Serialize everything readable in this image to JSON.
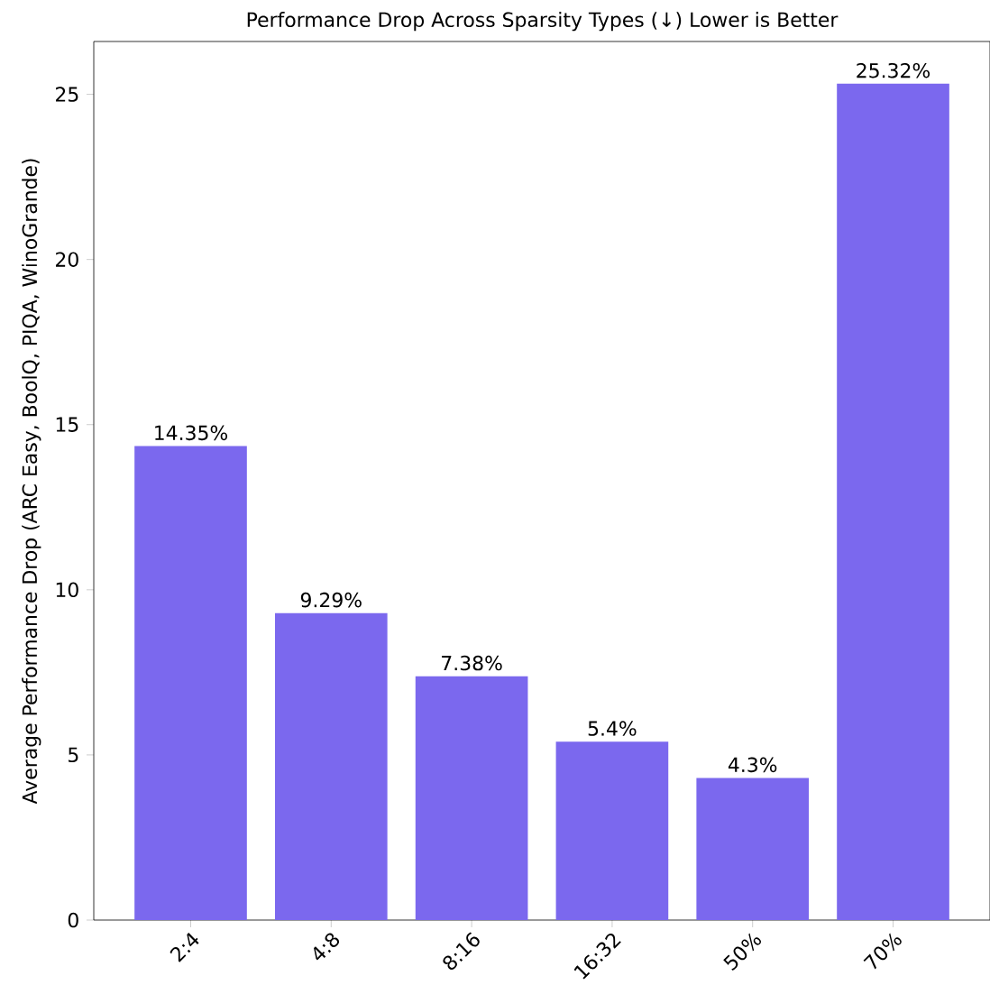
{
  "chart_data": {
    "type": "bar",
    "title": "Performance Drop Across Sparsity Types (↓) Lower is Better",
    "ylabel": "Average Performance Drop (ARC Easy, BoolQ, PIQA, WinoGrande)",
    "categories": [
      "2:4",
      "4:8",
      "8:16",
      "16:32",
      "50%",
      "70%"
    ],
    "values": [
      14.35,
      9.29,
      7.38,
      5.4,
      4.3,
      25.32
    ],
    "value_labels": [
      "14.35%",
      "9.29%",
      "7.38%",
      "5.4%",
      "4.3%",
      "25.32%"
    ],
    "color": "#7b68ee",
    "ylim": [
      0,
      26.6
    ],
    "yticks": [
      0,
      5,
      10,
      15,
      20,
      25
    ],
    "grid": false
  }
}
